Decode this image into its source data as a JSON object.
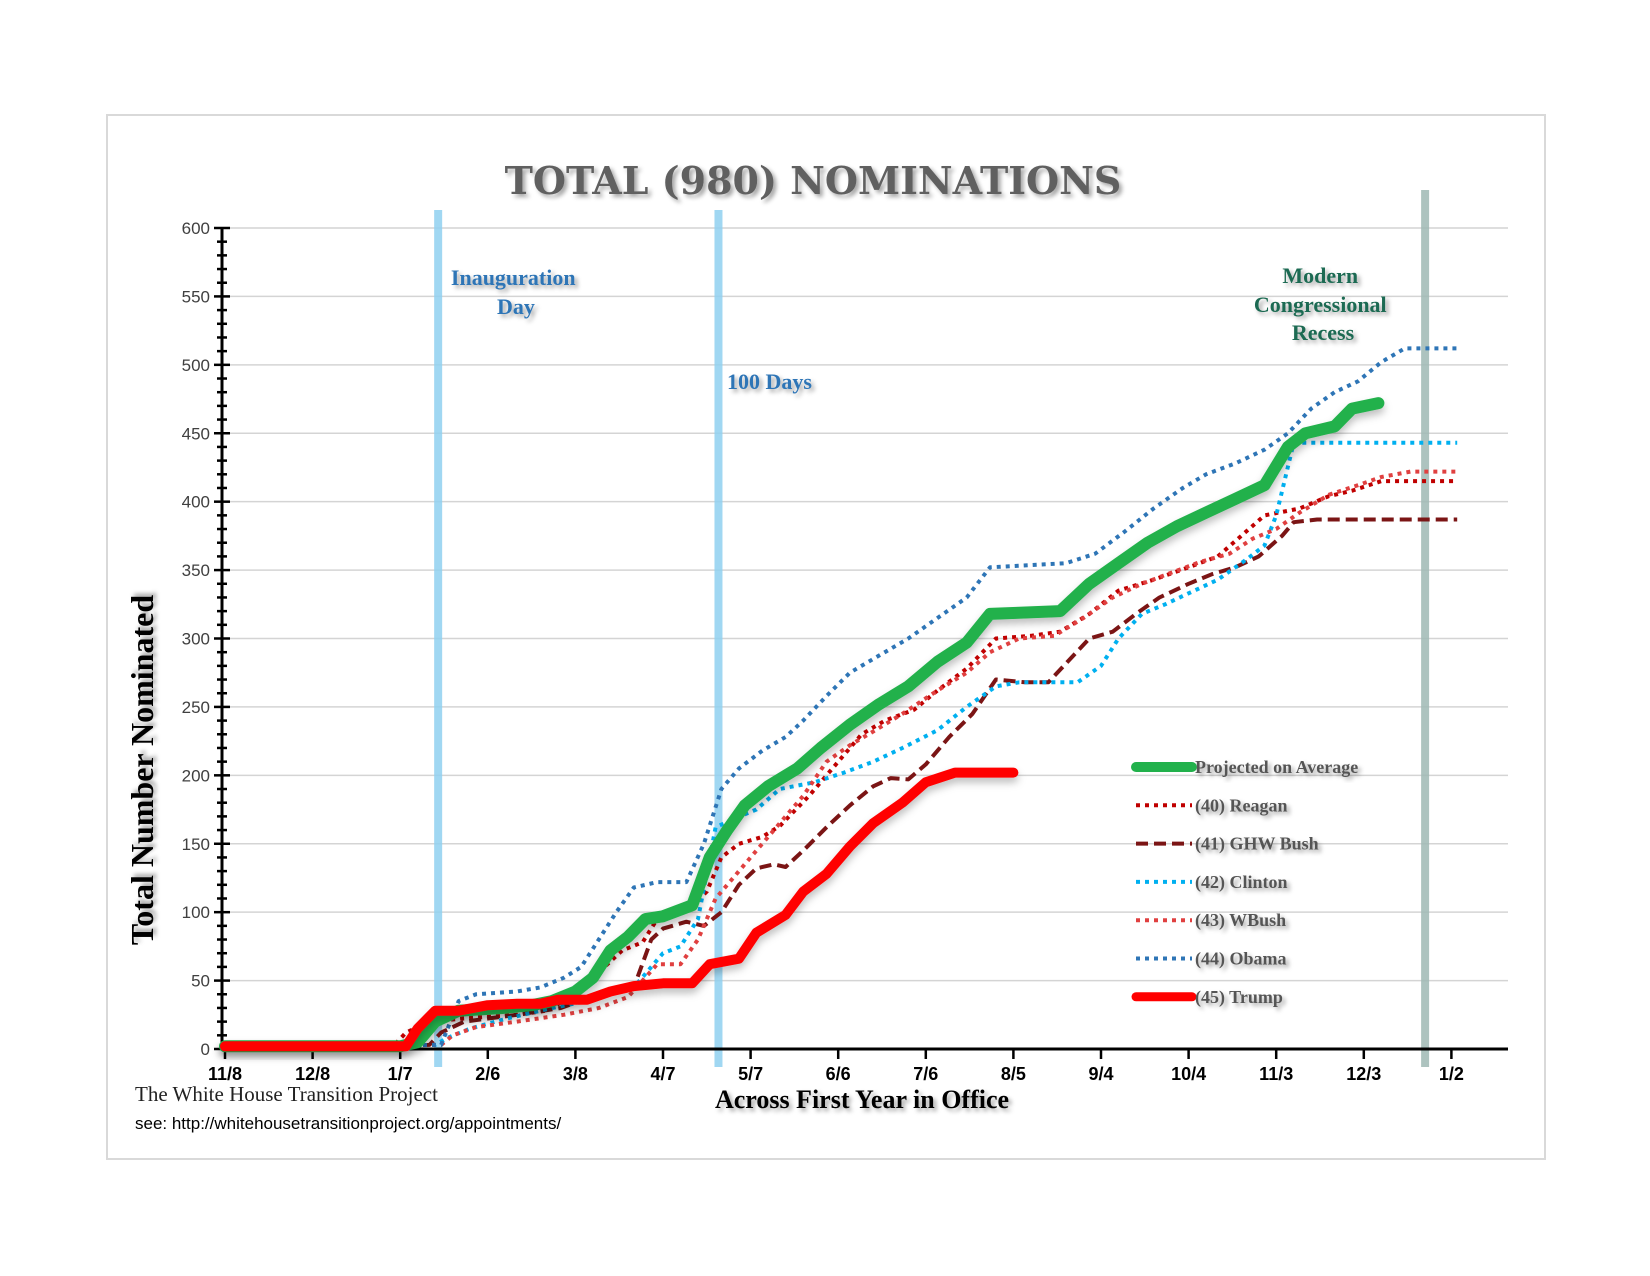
{
  "chart_data": {
    "type": "line",
    "title": "TOTAL (980) NOMINATIONS",
    "xlabel": "Across First Year in Office",
    "ylabel": "Total Number Nominated",
    "ylim": [
      0,
      600
    ],
    "yticks": [
      0,
      50,
      100,
      150,
      200,
      250,
      300,
      350,
      400,
      450,
      500,
      550,
      600
    ],
    "xlim_days": [
      0,
      420
    ],
    "xticks": [
      {
        "label": "11/8",
        "day": 0
      },
      {
        "label": "12/8",
        "day": 30
      },
      {
        "label": "1/7",
        "day": 60
      },
      {
        "label": "2/6",
        "day": 90
      },
      {
        "label": "3/8",
        "day": 120
      },
      {
        "label": "4/7",
        "day": 150
      },
      {
        "label": "5/7",
        "day": 180
      },
      {
        "label": "6/6",
        "day": 210
      },
      {
        "label": "7/6",
        "day": 240
      },
      {
        "label": "8/5",
        "day": 270
      },
      {
        "label": "9/4",
        "day": 300
      },
      {
        "label": "10/4",
        "day": 330
      },
      {
        "label": "11/3",
        "day": 360
      },
      {
        "label": "12/3",
        "day": 390
      },
      {
        "label": "1/2",
        "day": 420
      }
    ],
    "grid": true,
    "legend_position": "right",
    "vertical_markers": [
      {
        "label": "Inauguration Day",
        "day": 73,
        "color": "#8fd0f0"
      },
      {
        "label": "100 Days",
        "day": 169,
        "color": "#8fd0f0"
      },
      {
        "label": "Modern Congressional Recess",
        "day": 411,
        "color": "#9fb8b4"
      }
    ],
    "annotations": {
      "inauguration_lines": [
        "Inauguration",
        "Day"
      ],
      "hundred_days": "100 Days",
      "recess_lines": [
        "Modern",
        "Congressional",
        "Recess"
      ]
    },
    "series": [
      {
        "name": "Projected on Average",
        "color": "#22b14c",
        "style": "solid",
        "width": 12,
        "points": [
          [
            0,
            2
          ],
          [
            60,
            2
          ],
          [
            66,
            5
          ],
          [
            72,
            20
          ],
          [
            80,
            28
          ],
          [
            95,
            30
          ],
          [
            105,
            32
          ],
          [
            112,
            35
          ],
          [
            120,
            42
          ],
          [
            126,
            52
          ],
          [
            132,
            72
          ],
          [
            138,
            82
          ],
          [
            144,
            95
          ],
          [
            150,
            97
          ],
          [
            160,
            105
          ],
          [
            166,
            140
          ],
          [
            172,
            160
          ],
          [
            178,
            178
          ],
          [
            186,
            192
          ],
          [
            196,
            205
          ],
          [
            204,
            220
          ],
          [
            214,
            237
          ],
          [
            224,
            252
          ],
          [
            234,
            265
          ],
          [
            244,
            283
          ],
          [
            254,
            297
          ],
          [
            262,
            318
          ],
          [
            286,
            320
          ],
          [
            296,
            340
          ],
          [
            306,
            355
          ],
          [
            316,
            370
          ],
          [
            326,
            382
          ],
          [
            336,
            392
          ],
          [
            346,
            402
          ],
          [
            356,
            412
          ],
          [
            364,
            440
          ],
          [
            370,
            450
          ],
          [
            380,
            455
          ],
          [
            386,
            468
          ],
          [
            395,
            472
          ]
        ]
      },
      {
        "name": "(40) Reagan",
        "color": "#c00000",
        "style": "dotted",
        "width": 4,
        "points": [
          [
            0,
            2
          ],
          [
            58,
            3
          ],
          [
            62,
            12
          ],
          [
            70,
            20
          ],
          [
            80,
            22
          ],
          [
            100,
            25
          ],
          [
            110,
            28
          ],
          [
            120,
            40
          ],
          [
            130,
            60
          ],
          [
            136,
            72
          ],
          [
            143,
            78
          ],
          [
            148,
            95
          ],
          [
            154,
            98
          ],
          [
            160,
            105
          ],
          [
            165,
            115
          ],
          [
            170,
            140
          ],
          [
            176,
            150
          ],
          [
            184,
            155
          ],
          [
            190,
            163
          ],
          [
            200,
            185
          ],
          [
            210,
            210
          ],
          [
            218,
            230
          ],
          [
            226,
            240
          ],
          [
            236,
            248
          ],
          [
            244,
            262
          ],
          [
            254,
            278
          ],
          [
            264,
            300
          ],
          [
            276,
            302
          ],
          [
            286,
            305
          ],
          [
            296,
            318
          ],
          [
            306,
            335
          ],
          [
            318,
            343
          ],
          [
            330,
            352
          ],
          [
            340,
            360
          ],
          [
            348,
            375
          ],
          [
            356,
            390
          ],
          [
            368,
            395
          ],
          [
            378,
            404
          ],
          [
            386,
            408
          ],
          [
            396,
            415
          ],
          [
            422,
            415
          ]
        ]
      },
      {
        "name": "(41) GHW Bush",
        "color": "#7b1515",
        "style": "dashed",
        "width": 4,
        "points": [
          [
            0,
            2
          ],
          [
            70,
            3
          ],
          [
            74,
            12
          ],
          [
            82,
            20
          ],
          [
            100,
            25
          ],
          [
            115,
            30
          ],
          [
            128,
            40
          ],
          [
            140,
            45
          ],
          [
            146,
            80
          ],
          [
            150,
            88
          ],
          [
            158,
            93
          ],
          [
            164,
            90
          ],
          [
            170,
            100
          ],
          [
            176,
            120
          ],
          [
            182,
            132
          ],
          [
            188,
            135
          ],
          [
            192,
            133
          ],
          [
            198,
            145
          ],
          [
            206,
            162
          ],
          [
            214,
            178
          ],
          [
            222,
            192
          ],
          [
            228,
            198
          ],
          [
            234,
            197
          ],
          [
            240,
            208
          ],
          [
            248,
            228
          ],
          [
            256,
            245
          ],
          [
            264,
            270
          ],
          [
            274,
            268
          ],
          [
            282,
            268
          ],
          [
            296,
            300
          ],
          [
            304,
            305
          ],
          [
            312,
            318
          ],
          [
            320,
            330
          ],
          [
            330,
            340
          ],
          [
            338,
            347
          ],
          [
            346,
            352
          ],
          [
            354,
            360
          ],
          [
            362,
            375
          ],
          [
            366,
            385
          ],
          [
            374,
            387
          ],
          [
            422,
            387
          ]
        ]
      },
      {
        "name": "(42) Clinton",
        "color": "#00b0f0",
        "style": "dotted",
        "width": 4,
        "points": [
          [
            0,
            2
          ],
          [
            72,
            3
          ],
          [
            76,
            8
          ],
          [
            84,
            15
          ],
          [
            96,
            22
          ],
          [
            112,
            30
          ],
          [
            124,
            35
          ],
          [
            132,
            40
          ],
          [
            140,
            45
          ],
          [
            150,
            70
          ],
          [
            156,
            75
          ],
          [
            162,
            95
          ],
          [
            168,
            162
          ],
          [
            174,
            168
          ],
          [
            182,
            175
          ],
          [
            190,
            190
          ],
          [
            202,
            195
          ],
          [
            212,
            202
          ],
          [
            222,
            210
          ],
          [
            232,
            220
          ],
          [
            244,
            233
          ],
          [
            254,
            250
          ],
          [
            264,
            265
          ],
          [
            272,
            268
          ],
          [
            292,
            268
          ],
          [
            300,
            280
          ],
          [
            306,
            300
          ],
          [
            314,
            318
          ],
          [
            322,
            325
          ],
          [
            330,
            333
          ],
          [
            340,
            343
          ],
          [
            350,
            358
          ],
          [
            356,
            368
          ],
          [
            360,
            390
          ],
          [
            366,
            443
          ],
          [
            378,
            443
          ],
          [
            422,
            443
          ]
        ]
      },
      {
        "name": "(43) WBush",
        "color": "#e04040",
        "style": "dotted",
        "width": 4,
        "points": [
          [
            0,
            2
          ],
          [
            74,
            3
          ],
          [
            78,
            10
          ],
          [
            86,
            16
          ],
          [
            100,
            20
          ],
          [
            116,
            25
          ],
          [
            128,
            30
          ],
          [
            138,
            38
          ],
          [
            148,
            62
          ],
          [
            156,
            62
          ],
          [
            162,
            80
          ],
          [
            168,
            110
          ],
          [
            174,
            125
          ],
          [
            180,
            140
          ],
          [
            190,
            165
          ],
          [
            198,
            185
          ],
          [
            206,
            210
          ],
          [
            214,
            222
          ],
          [
            222,
            232
          ],
          [
            232,
            245
          ],
          [
            244,
            262
          ],
          [
            254,
            275
          ],
          [
            262,
            290
          ],
          [
            272,
            300
          ],
          [
            284,
            302
          ],
          [
            294,
            315
          ],
          [
            304,
            330
          ],
          [
            314,
            340
          ],
          [
            324,
            348
          ],
          [
            334,
            356
          ],
          [
            344,
            362
          ],
          [
            352,
            373
          ],
          [
            360,
            380
          ],
          [
            368,
            392
          ],
          [
            378,
            405
          ],
          [
            388,
            412
          ],
          [
            396,
            418
          ],
          [
            406,
            422
          ],
          [
            422,
            422
          ]
        ]
      },
      {
        "name": "(44) Obama",
        "color": "#2e75b6",
        "style": "dotted",
        "width": 4,
        "points": [
          [
            0,
            2
          ],
          [
            74,
            3
          ],
          [
            80,
            35
          ],
          [
            86,
            40
          ],
          [
            100,
            42
          ],
          [
            108,
            45
          ],
          [
            116,
            52
          ],
          [
            122,
            60
          ],
          [
            128,
            80
          ],
          [
            134,
            100
          ],
          [
            140,
            118
          ],
          [
            148,
            122
          ],
          [
            158,
            122
          ],
          [
            164,
            150
          ],
          [
            170,
            190
          ],
          [
            176,
            205
          ],
          [
            184,
            218
          ],
          [
            192,
            228
          ],
          [
            198,
            240
          ],
          [
            206,
            258
          ],
          [
            214,
            275
          ],
          [
            222,
            285
          ],
          [
            234,
            300
          ],
          [
            244,
            315
          ],
          [
            254,
            330
          ],
          [
            262,
            352
          ],
          [
            288,
            355
          ],
          [
            298,
            362
          ],
          [
            308,
            378
          ],
          [
            318,
            395
          ],
          [
            328,
            410
          ],
          [
            336,
            420
          ],
          [
            346,
            428
          ],
          [
            356,
            438
          ],
          [
            364,
            450
          ],
          [
            372,
            468
          ],
          [
            380,
            480
          ],
          [
            388,
            488
          ],
          [
            396,
            502
          ],
          [
            404,
            512
          ],
          [
            422,
            512
          ]
        ]
      },
      {
        "name": "(45) Trump",
        "color": "#ff0000",
        "style": "solid",
        "width": 10,
        "points": [
          [
            0,
            2
          ],
          [
            62,
            2
          ],
          [
            66,
            15
          ],
          [
            72,
            28
          ],
          [
            80,
            28
          ],
          [
            90,
            32
          ],
          [
            100,
            33
          ],
          [
            108,
            33
          ],
          [
            114,
            36
          ],
          [
            124,
            36
          ],
          [
            132,
            42
          ],
          [
            140,
            46
          ],
          [
            150,
            48
          ],
          [
            160,
            48
          ],
          [
            166,
            62
          ],
          [
            176,
            66
          ],
          [
            182,
            85
          ],
          [
            192,
            98
          ],
          [
            198,
            115
          ],
          [
            206,
            128
          ],
          [
            214,
            148
          ],
          [
            222,
            165
          ],
          [
            232,
            180
          ],
          [
            240,
            195
          ],
          [
            250,
            202
          ],
          [
            270,
            202
          ]
        ]
      }
    ]
  },
  "source": {
    "line1": "The White House Transition Project",
    "line2": "see: http://whitehousetransitionproject.org/appointments/"
  }
}
